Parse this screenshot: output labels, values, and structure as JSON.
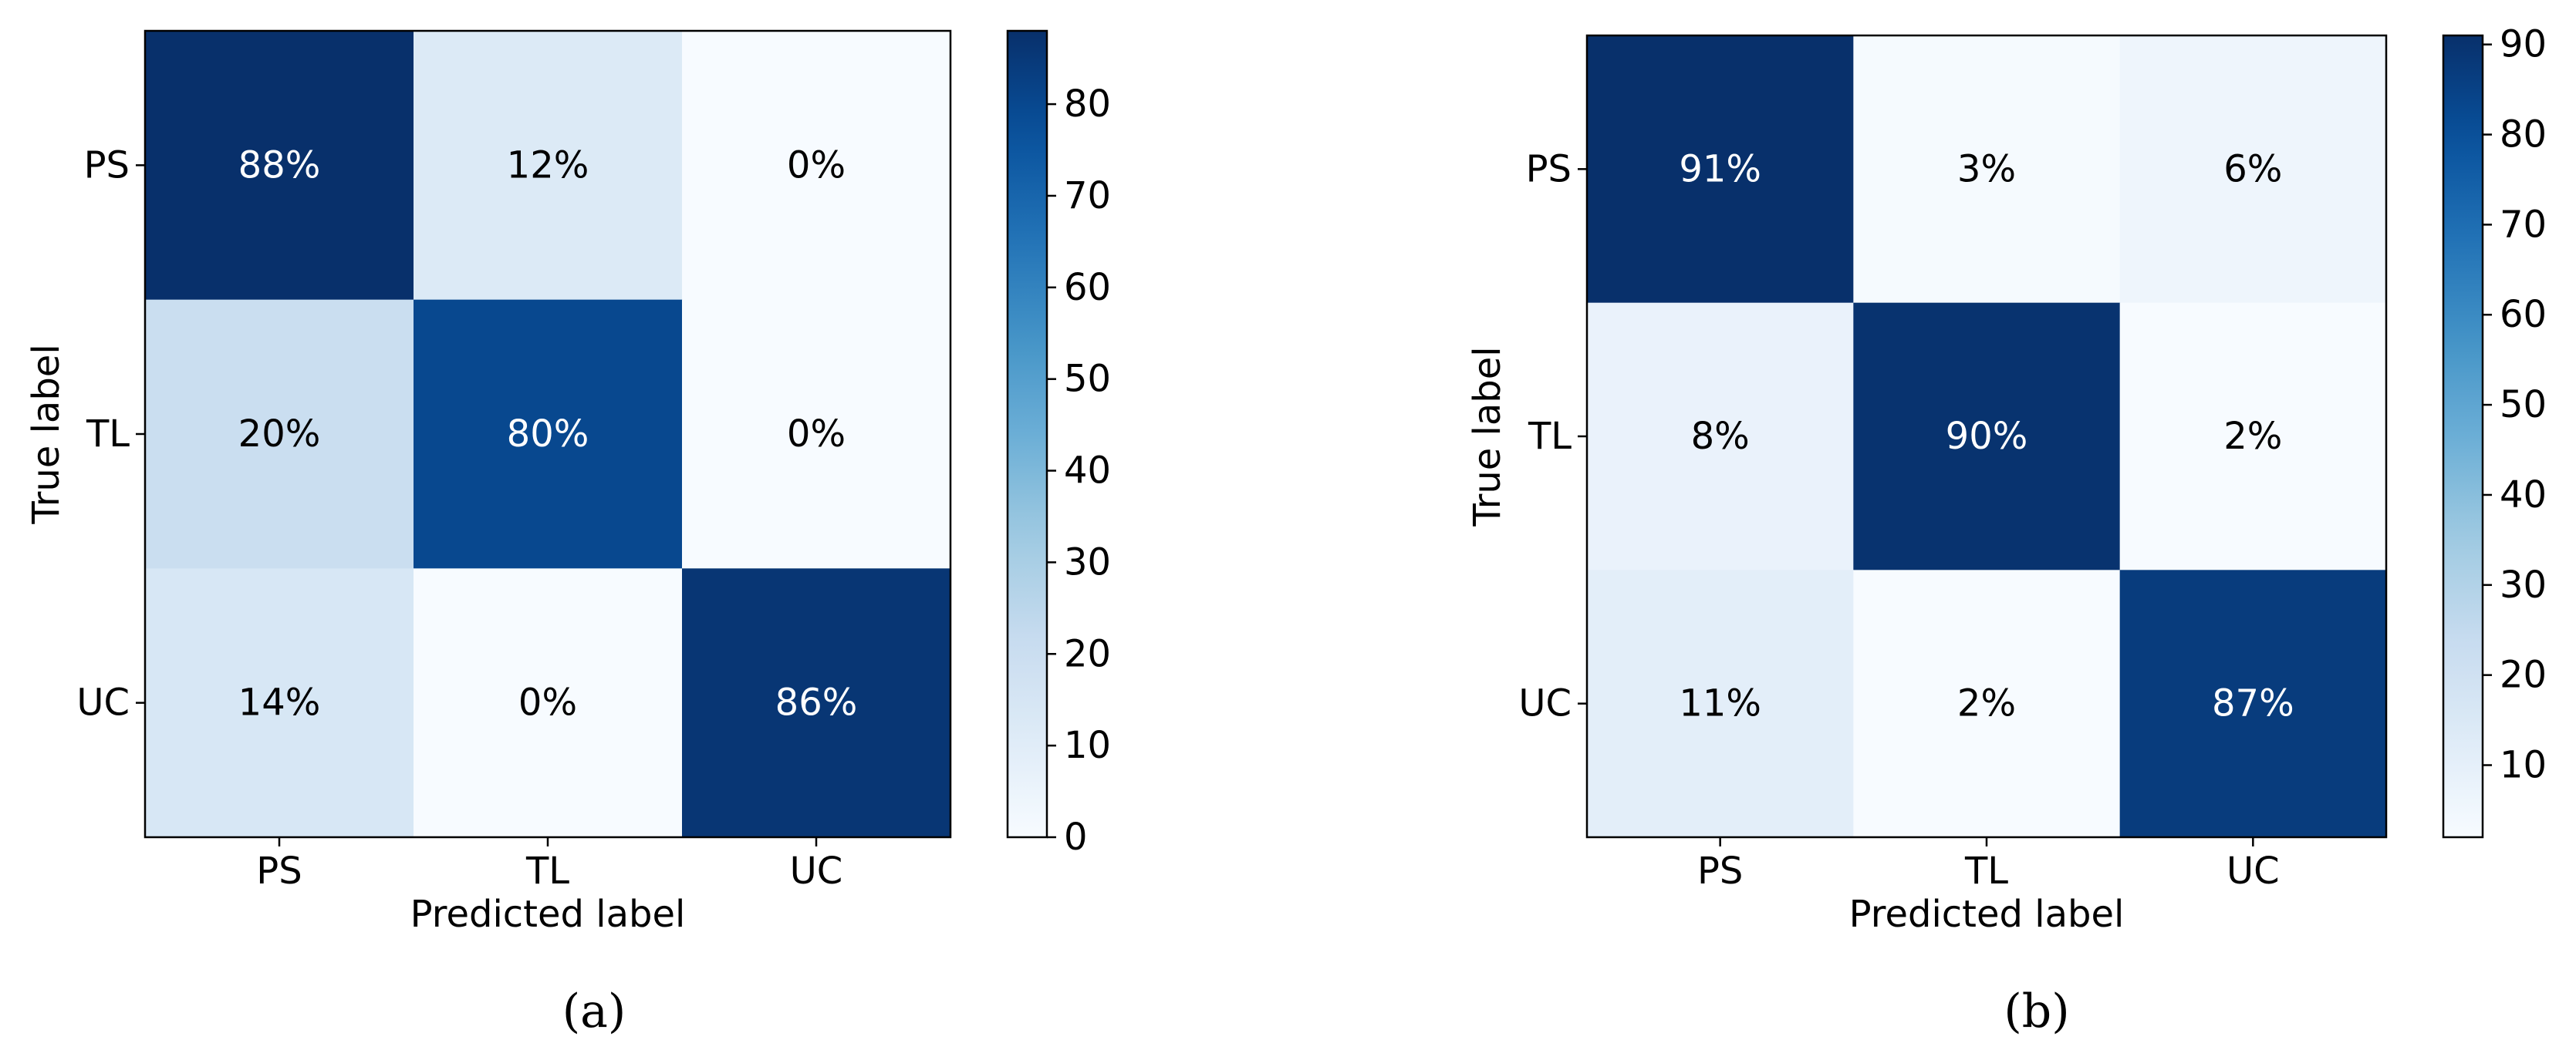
{
  "chart_data": [
    {
      "type": "heatmap",
      "panel_label": "(a)",
      "xlabel": "Predicted label",
      "ylabel": "True label",
      "x_categories": [
        "PS",
        "TL",
        "UC"
      ],
      "y_categories": [
        "PS",
        "TL",
        "UC"
      ],
      "values": [
        [
          88,
          12,
          0
        ],
        [
          20,
          80,
          0
        ],
        [
          14,
          0,
          86
        ]
      ],
      "cell_labels": [
        [
          "88%",
          "12%",
          "0%"
        ],
        [
          "20%",
          "80%",
          "0%"
        ],
        [
          "14%",
          "0%",
          "86%"
        ]
      ],
      "colorbar": {
        "range": [
          0,
          88
        ],
        "ticks": [
          0,
          10,
          20,
          30,
          40,
          50,
          60,
          70,
          80
        ],
        "tick_labels": [
          "0",
          "10",
          "20",
          "30",
          "40",
          "50",
          "60",
          "70",
          "80"
        ],
        "colormap": "Blues"
      }
    },
    {
      "type": "heatmap",
      "panel_label": "(b)",
      "xlabel": "Predicted label",
      "ylabel": "True label",
      "x_categories": [
        "PS",
        "TL",
        "UC"
      ],
      "y_categories": [
        "PS",
        "TL",
        "UC"
      ],
      "values": [
        [
          91,
          3,
          6
        ],
        [
          8,
          90,
          2
        ],
        [
          11,
          2,
          87
        ]
      ],
      "cell_labels": [
        [
          "91%",
          "3%",
          "6%"
        ],
        [
          "8%",
          "90%",
          "2%"
        ],
        [
          "11%",
          "2%",
          "87%"
        ]
      ],
      "colorbar": {
        "range": [
          2,
          91
        ],
        "ticks": [
          10,
          20,
          30,
          40,
          50,
          60,
          70,
          80,
          90
        ],
        "tick_labels": [
          "10",
          "20",
          "30",
          "40",
          "50",
          "60",
          "70",
          "80",
          "90"
        ],
        "colormap": "Blues"
      }
    }
  ]
}
